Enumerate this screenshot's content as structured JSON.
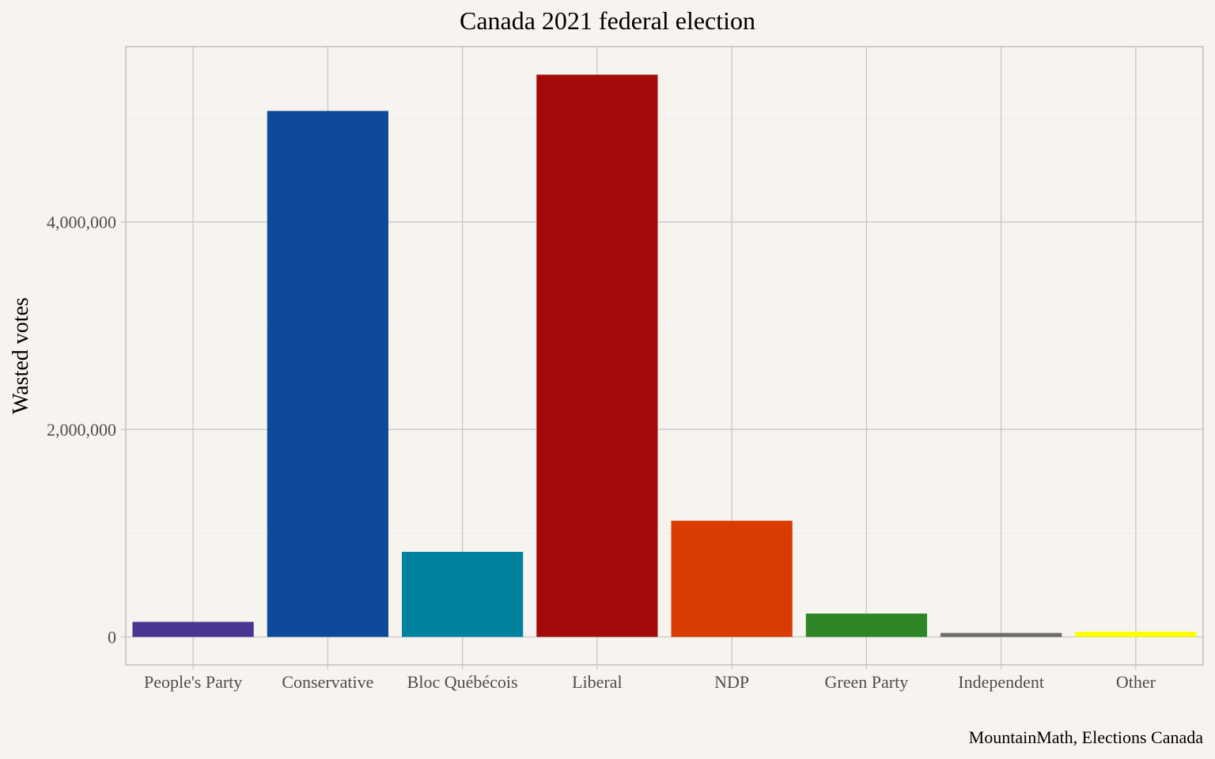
{
  "chart_data": {
    "type": "bar",
    "title": "Canada 2021 federal election",
    "xlabel": "",
    "ylabel": "Wasted votes",
    "caption": "MountainMath, Elections Canada",
    "categories": [
      "People's Party",
      "Conservative",
      "Bloc Québécois",
      "Liberal",
      "NDP",
      "Green Party",
      "Independent",
      "Other"
    ],
    "values": [
      145000,
      5070000,
      820000,
      5420000,
      1120000,
      225000,
      38000,
      50000
    ],
    "colors": [
      "#4a3590",
      "#0d4a9a",
      "#00829e",
      "#a30b0b",
      "#d83c00",
      "#2e8626",
      "#6b6b6b",
      "#ffff00"
    ],
    "yticks": [
      0,
      2000000,
      4000000
    ],
    "ytick_labels": [
      "0",
      "2,000,000",
      "4,000,000"
    ],
    "ylim": [
      -270000,
      5690000
    ],
    "grid": true,
    "legend": "none"
  },
  "colors": {
    "background": "#f7f4f0",
    "grid_major": "#c4c4c4",
    "grid_minor": "#ebebeb",
    "panel_border": "#b3b3b3"
  }
}
